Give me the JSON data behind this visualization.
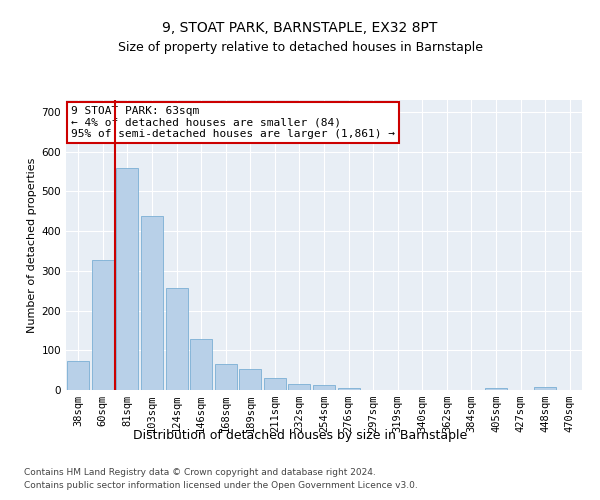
{
  "title1": "9, STOAT PARK, BARNSTAPLE, EX32 8PT",
  "title2": "Size of property relative to detached houses in Barnstaple",
  "xlabel": "Distribution of detached houses by size in Barnstaple",
  "ylabel": "Number of detached properties",
  "categories": [
    "38sqm",
    "60sqm",
    "81sqm",
    "103sqm",
    "124sqm",
    "146sqm",
    "168sqm",
    "189sqm",
    "211sqm",
    "232sqm",
    "254sqm",
    "276sqm",
    "297sqm",
    "319sqm",
    "340sqm",
    "362sqm",
    "384sqm",
    "405sqm",
    "427sqm",
    "448sqm",
    "470sqm"
  ],
  "values": [
    72,
    328,
    560,
    438,
    258,
    128,
    65,
    53,
    30,
    15,
    12,
    5,
    1,
    0,
    0,
    0,
    0,
    5,
    0,
    8,
    0
  ],
  "bar_color": "#b8d0e8",
  "bar_edge_color": "#7bafd4",
  "vline_x": 1.5,
  "vline_color": "#cc0000",
  "annotation_text": "9 STOAT PARK: 63sqm\n← 4% of detached houses are smaller (84)\n95% of semi-detached houses are larger (1,861) →",
  "annotation_box_facecolor": "#ffffff",
  "annotation_box_edgecolor": "#cc0000",
  "footer1": "Contains HM Land Registry data © Crown copyright and database right 2024.",
  "footer2": "Contains public sector information licensed under the Open Government Licence v3.0.",
  "ylim": [
    0,
    730
  ],
  "yticks": [
    0,
    100,
    200,
    300,
    400,
    500,
    600,
    700
  ],
  "plot_bg": "#e8eef5",
  "title1_fontsize": 10,
  "title2_fontsize": 9,
  "xlabel_fontsize": 9,
  "ylabel_fontsize": 8,
  "tick_fontsize": 7.5,
  "annotation_fontsize": 8,
  "footer_fontsize": 6.5
}
